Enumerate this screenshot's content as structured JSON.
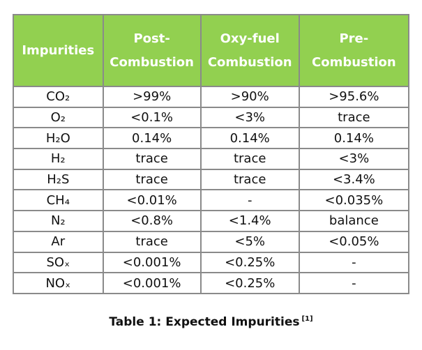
{
  "table": {
    "header": [
      "Impurities",
      "Post-\nCombustion",
      "Oxy-fuel\nCombustion",
      "Pre-\nCombustion"
    ],
    "rows": [
      [
        "CO₂",
        ">99%",
        ">90%",
        ">95.6%"
      ],
      [
        "O₂",
        "<0.1%",
        "<3%",
        "trace"
      ],
      [
        "H₂O",
        "0.14%",
        "0.14%",
        "0.14%"
      ],
      [
        "H₂",
        "trace",
        "trace",
        "<3%"
      ],
      [
        "H₂S",
        "trace",
        "trace",
        "<3.4%"
      ],
      [
        "CH₄",
        "<0.01%",
        "-",
        "<0.035%"
      ],
      [
        "N₂",
        "<0.8%",
        "<1.4%",
        "balance"
      ],
      [
        "Ar",
        "trace",
        "<5%",
        "<0.05%"
      ],
      [
        "SOₓ",
        "<0.001%",
        "<0.25%",
        "-"
      ],
      [
        "NOₓ",
        "<0.001%",
        "<0.25%",
        "-"
      ]
    ]
  },
  "caption": {
    "text": "Table 1: Expected Impurities",
    "ref": "[1]"
  }
}
